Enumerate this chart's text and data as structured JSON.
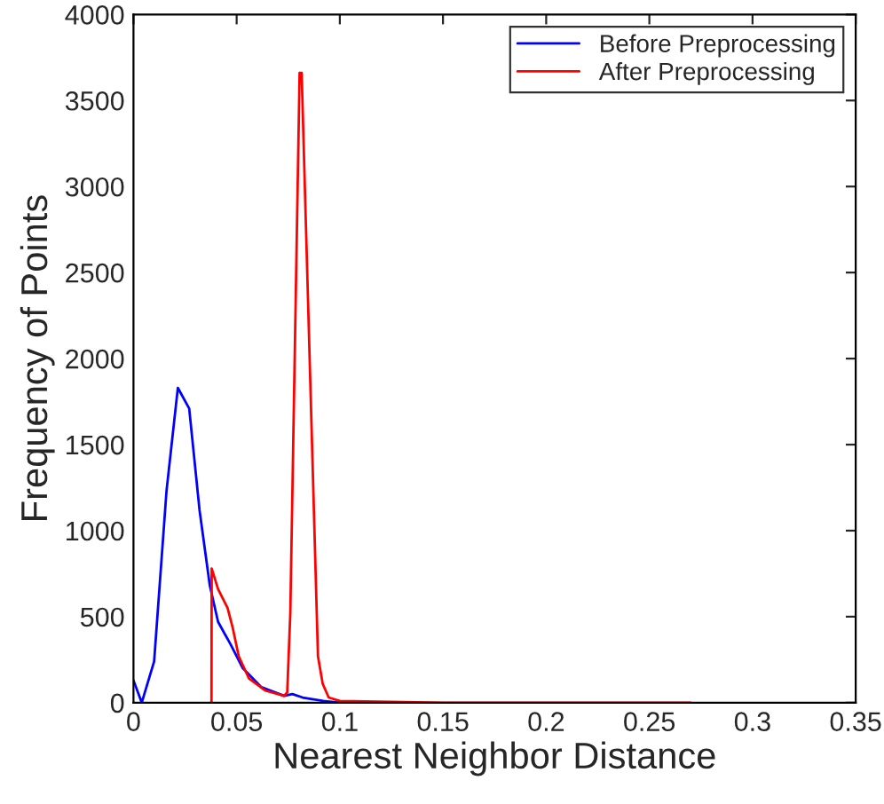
{
  "chart_data": {
    "type": "line",
    "xlabel": "Nearest Neighbor Distance",
    "ylabel": "Frequency of Points",
    "xlim": [
      0,
      0.35
    ],
    "xticks": [
      0,
      0.05,
      0.1,
      0.15,
      0.2,
      0.25,
      0.3,
      0.35
    ],
    "ylim": [
      0,
      4000
    ],
    "yticks": [
      0,
      500,
      1000,
      1500,
      2000,
      2500,
      3000,
      3500,
      4000
    ],
    "grid": false,
    "legend": "top right",
    "series": [
      {
        "name": "Before Preprocessing",
        "color": "#0000ff",
        "x": [
          0,
          0.004,
          0.01,
          0.016,
          0.0215,
          0.027,
          0.032,
          0.037,
          0.041,
          0.047,
          0.053,
          0.062,
          0.073,
          0.077,
          0.082,
          0.092,
          0.1
        ],
        "values": [
          130,
          0,
          240,
          1230,
          1830,
          1710,
          1120,
          680,
          470,
          340,
          200,
          90,
          40,
          50,
          30,
          10,
          0
        ]
      },
      {
        "name": "After Preprocessing",
        "color": "#ff0000",
        "x": [
          0.0378,
          0.0379,
          0.041,
          0.0456,
          0.048,
          0.051,
          0.056,
          0.064,
          0.073,
          0.0745,
          0.076,
          0.0805,
          0.0815,
          0.0894,
          0.0917,
          0.0946,
          0.1,
          0.15,
          0.2,
          0.27
        ],
        "values": [
          0,
          780,
          660,
          550,
          440,
          270,
          140,
          70,
          40,
          60,
          520,
          3660,
          3660,
          270,
          110,
          30,
          10,
          0,
          0,
          0
        ]
      }
    ]
  }
}
